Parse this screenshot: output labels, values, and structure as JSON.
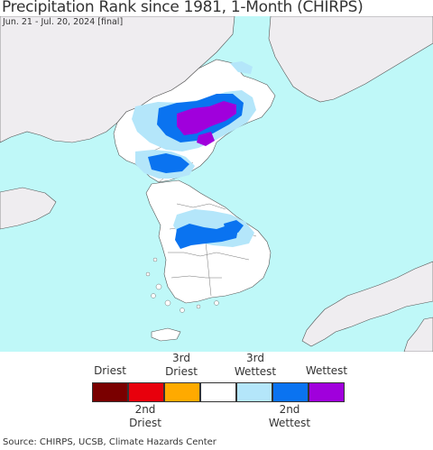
{
  "header": {
    "title": "Precipitation Rank since 1981, 1-Month (CHIRPS)",
    "subtitle": "Jun. 21 - Jul. 20, 2024 [final]"
  },
  "legend": {
    "top_labels": {
      "driest": "Driest",
      "third_driest": "3rd\nDriest",
      "third_wettest": "3rd\nWettest",
      "wettest": "Wettest"
    },
    "bottom_labels": {
      "second_driest": "2nd\nDriest",
      "second_wettest": "2nd\nWettest"
    },
    "swatches": [
      {
        "name": "driest",
        "color": "#7a0000"
      },
      {
        "name": "second-driest",
        "color": "#e8000c"
      },
      {
        "name": "third-driest",
        "color": "#ffaa00"
      },
      {
        "name": "normal",
        "color": "#ffffff"
      },
      {
        "name": "third-wettest",
        "color": "#b4e6fa"
      },
      {
        "name": "second-wettest",
        "color": "#0a73f0"
      },
      {
        "name": "wettest",
        "color": "#a000dc"
      }
    ]
  },
  "colors": {
    "sea": "#bff8f8",
    "outside_land": "#efedf0",
    "region_land": "#ffffff",
    "border": "#555555"
  },
  "footer": {
    "source": "Source: CHIRPS, UCSB, Climate Hazards Center"
  }
}
